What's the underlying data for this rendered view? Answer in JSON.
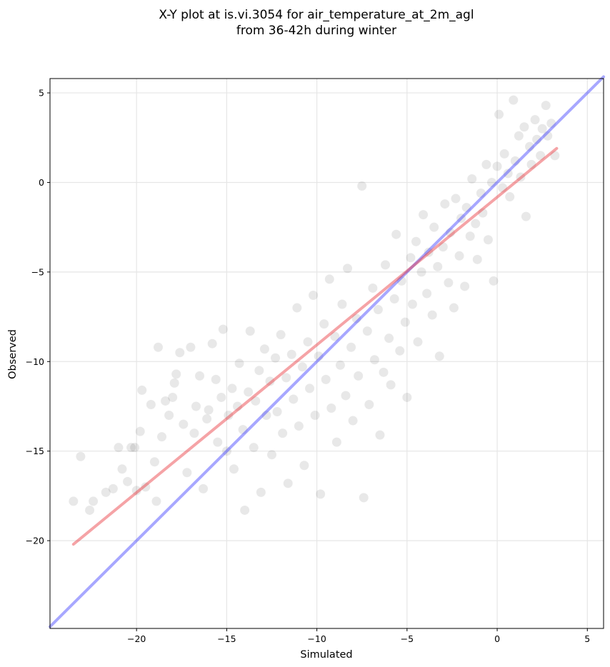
{
  "chart_data": {
    "type": "scatter",
    "title": "X-Y plot at is.vi.3054 for air_temperature_at_2m_agl",
    "subtitle": "from 36-42h during winter",
    "xlabel": "Simulated",
    "ylabel": "Observed",
    "xlim": [
      -24.8,
      5.9
    ],
    "ylim": [
      -24.9,
      5.8
    ],
    "xticks": [
      -20,
      -15,
      -10,
      -5,
      0,
      5
    ],
    "yticks": [
      -20,
      -15,
      -10,
      -5,
      0,
      5
    ],
    "xtick_labels": [
      "−20",
      "−15",
      "−10",
      "−5",
      "0",
      "5"
    ],
    "ytick_labels": [
      "−20",
      "−15",
      "−10",
      "−5",
      "0",
      "5"
    ],
    "grid": true,
    "point_color": "#000000",
    "point_alpha": 0.09,
    "points": [
      [
        -23.5,
        -17.8
      ],
      [
        -23.1,
        -15.3
      ],
      [
        -22.6,
        -18.3
      ],
      [
        -22.4,
        -17.8
      ],
      [
        -21.7,
        -17.3
      ],
      [
        -21.3,
        -17.1
      ],
      [
        -21.0,
        -14.8
      ],
      [
        -20.8,
        -16.0
      ],
      [
        -20.5,
        -16.7
      ],
      [
        -20.3,
        -14.8
      ],
      [
        -20.1,
        -14.8
      ],
      [
        -20.0,
        -17.2
      ],
      [
        -19.8,
        -13.9
      ],
      [
        -19.7,
        -11.6
      ],
      [
        -19.5,
        -17.0
      ],
      [
        -19.2,
        -12.4
      ],
      [
        -19.0,
        -15.6
      ],
      [
        -18.9,
        -17.8
      ],
      [
        -18.8,
        -9.2
      ],
      [
        -18.6,
        -14.2
      ],
      [
        -18.4,
        -12.2
      ],
      [
        -18.2,
        -13.0
      ],
      [
        -18.0,
        -12.0
      ],
      [
        -17.9,
        -11.2
      ],
      [
        -17.8,
        -10.7
      ],
      [
        -17.6,
        -9.5
      ],
      [
        -17.4,
        -13.5
      ],
      [
        -17.2,
        -16.2
      ],
      [
        -17.0,
        -9.2
      ],
      [
        -16.8,
        -14.0
      ],
      [
        -16.7,
        -12.5
      ],
      [
        -16.5,
        -10.8
      ],
      [
        -16.3,
        -17.1
      ],
      [
        -16.1,
        -13.2
      ],
      [
        -16.0,
        -12.7
      ],
      [
        -15.8,
        -9.0
      ],
      [
        -15.6,
        -11.0
      ],
      [
        -15.5,
        -14.5
      ],
      [
        -15.3,
        -12.0
      ],
      [
        -15.2,
        -8.2
      ],
      [
        -15.0,
        -15.0
      ],
      [
        -14.9,
        -13.0
      ],
      [
        -14.7,
        -11.5
      ],
      [
        -14.6,
        -16.0
      ],
      [
        -14.4,
        -12.5
      ],
      [
        -14.3,
        -10.1
      ],
      [
        -14.1,
        -13.8
      ],
      [
        -14.0,
        -18.3
      ],
      [
        -13.8,
        -11.7
      ],
      [
        -13.7,
        -8.3
      ],
      [
        -13.5,
        -14.8
      ],
      [
        -13.4,
        -12.2
      ],
      [
        -13.2,
        -10.5
      ],
      [
        -13.1,
        -17.3
      ],
      [
        -12.9,
        -9.3
      ],
      [
        -12.8,
        -13.0
      ],
      [
        -12.6,
        -11.1
      ],
      [
        -12.5,
        -15.2
      ],
      [
        -12.3,
        -9.8
      ],
      [
        -12.2,
        -12.8
      ],
      [
        -12.0,
        -8.5
      ],
      [
        -11.9,
        -14.0
      ],
      [
        -11.7,
        -10.9
      ],
      [
        -11.6,
        -16.8
      ],
      [
        -11.4,
        -9.6
      ],
      [
        -11.3,
        -12.1
      ],
      [
        -11.1,
        -7.0
      ],
      [
        -11.0,
        -13.6
      ],
      [
        -10.8,
        -10.3
      ],
      [
        -10.7,
        -15.8
      ],
      [
        -10.5,
        -8.9
      ],
      [
        -10.4,
        -11.5
      ],
      [
        -10.2,
        -6.3
      ],
      [
        -10.1,
        -13.0
      ],
      [
        -9.9,
        -9.7
      ],
      [
        -9.8,
        -17.4
      ],
      [
        -9.6,
        -7.9
      ],
      [
        -9.5,
        -11.0
      ],
      [
        -9.3,
        -5.4
      ],
      [
        -9.2,
        -12.6
      ],
      [
        -9.0,
        -8.6
      ],
      [
        -8.9,
        -14.5
      ],
      [
        -8.7,
        -10.2
      ],
      [
        -8.6,
        -6.8
      ],
      [
        -8.4,
        -11.9
      ],
      [
        -8.3,
        -4.8
      ],
      [
        -8.1,
        -9.2
      ],
      [
        -8.0,
        -13.3
      ],
      [
        -7.8,
        -7.6
      ],
      [
        -7.7,
        -10.8
      ],
      [
        -7.5,
        -0.2
      ],
      [
        -7.4,
        -17.6
      ],
      [
        -7.2,
        -8.3
      ],
      [
        -7.1,
        -12.4
      ],
      [
        -6.9,
        -5.9
      ],
      [
        -6.8,
        -9.9
      ],
      [
        -6.6,
        -7.1
      ],
      [
        -6.5,
        -14.1
      ],
      [
        -6.3,
        -10.6
      ],
      [
        -6.2,
        -4.6
      ],
      [
        -6.0,
        -8.7
      ],
      [
        -5.9,
        -11.3
      ],
      [
        -5.7,
        -6.5
      ],
      [
        -5.6,
        -2.9
      ],
      [
        -5.4,
        -9.4
      ],
      [
        -5.3,
        -5.5
      ],
      [
        -5.1,
        -7.8
      ],
      [
        -5.0,
        -12.0
      ],
      [
        -4.8,
        -4.2
      ],
      [
        -4.7,
        -6.8
      ],
      [
        -4.5,
        -3.3
      ],
      [
        -4.4,
        -8.9
      ],
      [
        -4.2,
        -5.0
      ],
      [
        -4.1,
        -1.8
      ],
      [
        -3.9,
        -6.2
      ],
      [
        -3.8,
        -3.9
      ],
      [
        -3.6,
        -7.4
      ],
      [
        -3.5,
        -2.5
      ],
      [
        -3.3,
        -4.7
      ],
      [
        -3.2,
        -9.7
      ],
      [
        -3.0,
        -3.6
      ],
      [
        -2.9,
        -1.2
      ],
      [
        -2.7,
        -5.6
      ],
      [
        -2.6,
        -2.8
      ],
      [
        -2.4,
        -7.0
      ],
      [
        -2.3,
        -0.9
      ],
      [
        -2.1,
        -4.1
      ],
      [
        -2.0,
        -2.0
      ],
      [
        -1.8,
        -5.8
      ],
      [
        -1.7,
        -1.4
      ],
      [
        -1.5,
        -3.0
      ],
      [
        -1.4,
        0.2
      ],
      [
        -1.2,
        -2.3
      ],
      [
        -1.1,
        -4.3
      ],
      [
        -0.9,
        -0.6
      ],
      [
        -0.8,
        -1.7
      ],
      [
        -0.6,
        1.0
      ],
      [
        -0.5,
        -3.2
      ],
      [
        -0.3,
        0.0
      ],
      [
        -0.2,
        -5.5
      ],
      [
        0.0,
        0.9
      ],
      [
        0.1,
        3.8
      ],
      [
        0.3,
        -0.3
      ],
      [
        0.4,
        1.6
      ],
      [
        0.6,
        0.5
      ],
      [
        0.7,
        -0.8
      ],
      [
        0.9,
        4.6
      ],
      [
        1.0,
        1.2
      ],
      [
        1.2,
        2.6
      ],
      [
        1.3,
        0.3
      ],
      [
        1.5,
        3.1
      ],
      [
        1.6,
        -1.9
      ],
      [
        1.8,
        2.0
      ],
      [
        1.9,
        1.0
      ],
      [
        2.1,
        3.5
      ],
      [
        2.2,
        2.4
      ],
      [
        2.4,
        1.5
      ],
      [
        2.5,
        3.0
      ],
      [
        2.7,
        4.3
      ],
      [
        2.8,
        2.6
      ],
      [
        3.0,
        3.3
      ],
      [
        3.2,
        1.5
      ]
    ],
    "regression_line": {
      "color": "#e8323a",
      "from": [
        -23.5,
        -20.2
      ],
      "to": [
        3.3,
        1.9
      ]
    },
    "identity_line": {
      "color": "#3b3bff",
      "from": [
        -24.8,
        -24.8
      ],
      "to": [
        5.9,
        5.9
      ]
    }
  }
}
